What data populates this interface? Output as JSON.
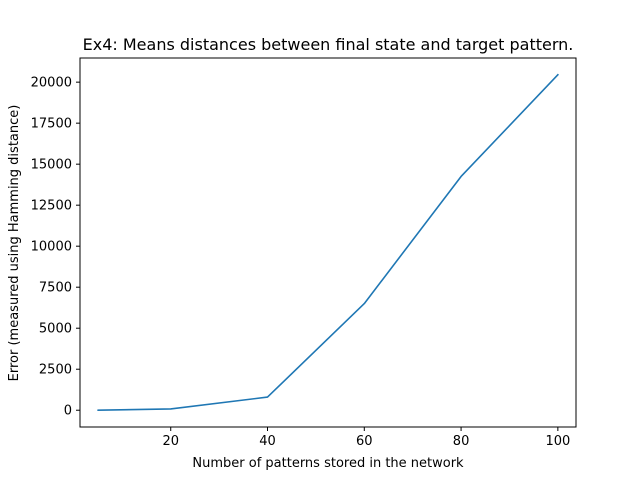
{
  "chart_data": {
    "type": "line",
    "title": "Ex4: Means distances between final state and target pattern.",
    "xlabel": "Number of patterns stored in the network",
    "ylabel": "Error (measured using Hamming distance)",
    "x": [
      5,
      20,
      40,
      60,
      80,
      100
    ],
    "series": [
      {
        "values": [
          0,
          80,
          800,
          6500,
          14250,
          20450
        ],
        "color": "#1f77b4"
      }
    ],
    "xticks": [
      20,
      40,
      60,
      80,
      100
    ],
    "yticks": [
      0,
      2500,
      5000,
      7500,
      10000,
      12500,
      15000,
      17500,
      20000
    ],
    "xlim": [
      1.25,
      103.75
    ],
    "ylim": [
      -1022.5,
      21472.5
    ],
    "grid": false,
    "legend": "none"
  }
}
